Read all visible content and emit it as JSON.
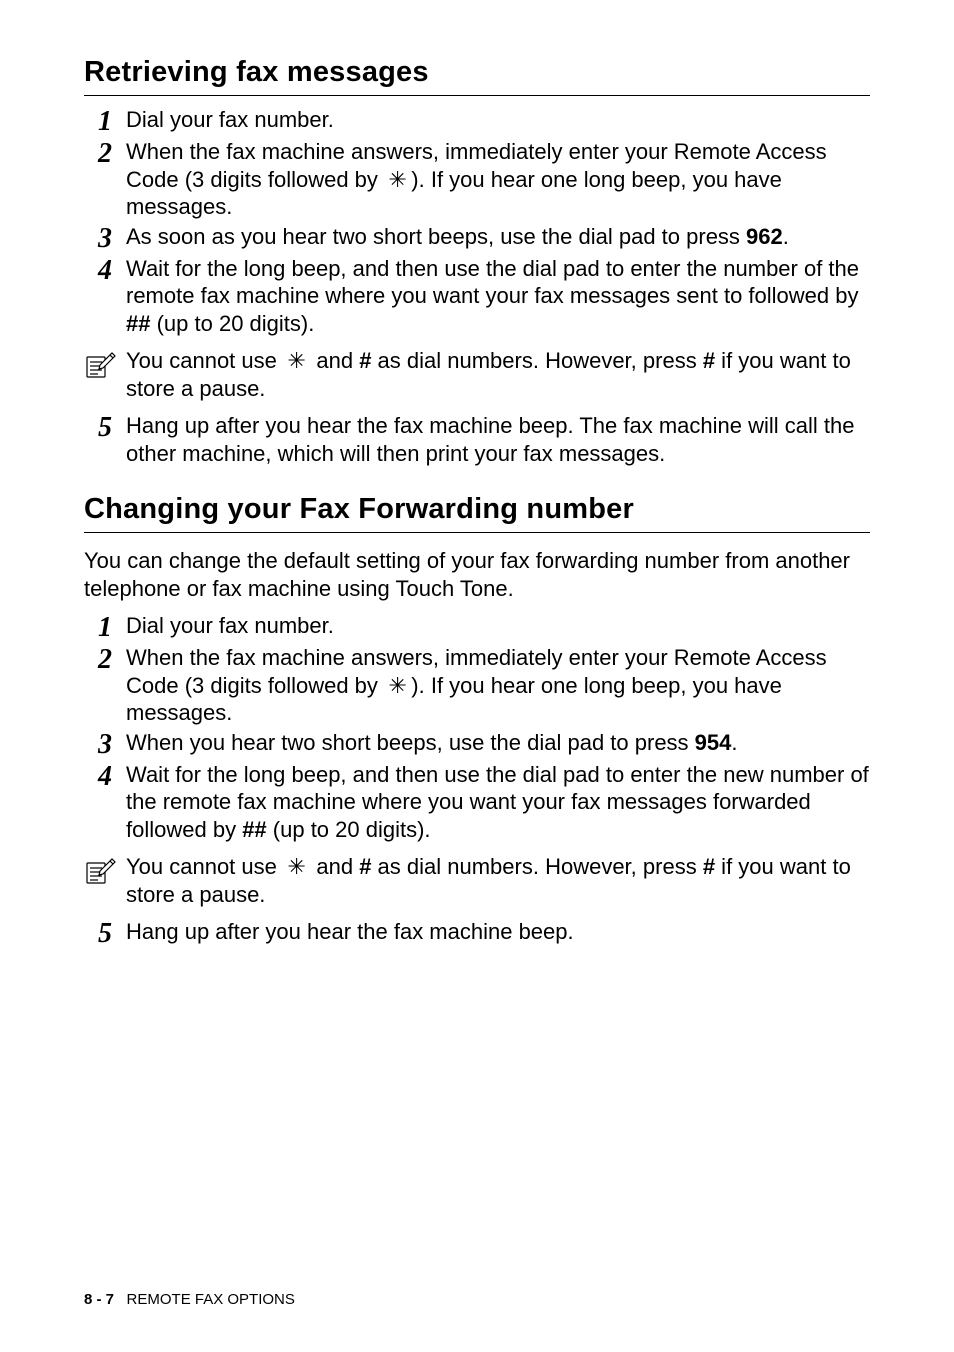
{
  "section1": {
    "heading": "Retrieving fax messages",
    "steps": [
      {
        "num": "1",
        "html": "Dial your fax number."
      },
      {
        "num": "2",
        "html": "When the fax machine answers, immediately enter your Remote Access Code (3 digits followed by <span class='star'>&#8201;&#x2733;&#8201;</span>). If you hear one long beep, you have messages."
      },
      {
        "num": "3",
        "html": "As soon as you hear two short beeps, use the dial pad to press <span class='b'>962</span>."
      },
      {
        "num": "4",
        "html": "Wait for the long beep, and then use the dial pad to enter the number of the remote fax machine where you want your fax messages sent to followed by <span class='b'>##</span> (up to 20 digits)."
      }
    ],
    "note": "You cannot use <span class='star'>&#8201;&#x2733;&#8201;</span> and <span class='b'>#</span> as dial numbers. However, press <span class='b'>#</span> if you want to store a pause.",
    "steps_after": [
      {
        "num": "5",
        "html": "Hang up after you hear the fax machine beep. The fax machine will call the other machine, which will then print your fax messages."
      }
    ]
  },
  "section2": {
    "heading": "Changing your Fax Forwarding number",
    "intro": "You can change the default setting of your fax forwarding number from another telephone or fax machine using Touch Tone.",
    "steps": [
      {
        "num": "1",
        "html": "Dial your fax number."
      },
      {
        "num": "2",
        "html": "When the fax machine answers, immediately enter your Remote Access Code (3 digits followed by <span class='star'>&#8201;&#x2733;&#8201;</span>). If you hear one long beep, you have messages."
      },
      {
        "num": "3",
        "html": "When you hear two short beeps, use the dial pad to press <span class='b'>954</span>."
      },
      {
        "num": "4",
        "html": "Wait for the long beep, and then use the dial pad to enter the new number of the remote fax machine where you want your fax messages forwarded followed by <span class='b'>##</span> (up to 20 digits)."
      }
    ],
    "note": "You cannot use <span class='star'>&#8201;&#x2733;&#8201;</span> and <span class='b'>#</span> as dial numbers. However, press <span class='b'>#</span> if you want to store a pause.",
    "steps_after": [
      {
        "num": "5",
        "html": "Hang up after you hear the fax machine beep."
      }
    ]
  },
  "footer": {
    "page": "8 - 7",
    "label": "REMOTE FAX OPTIONS"
  },
  "icon_name": "note-pencil-icon"
}
